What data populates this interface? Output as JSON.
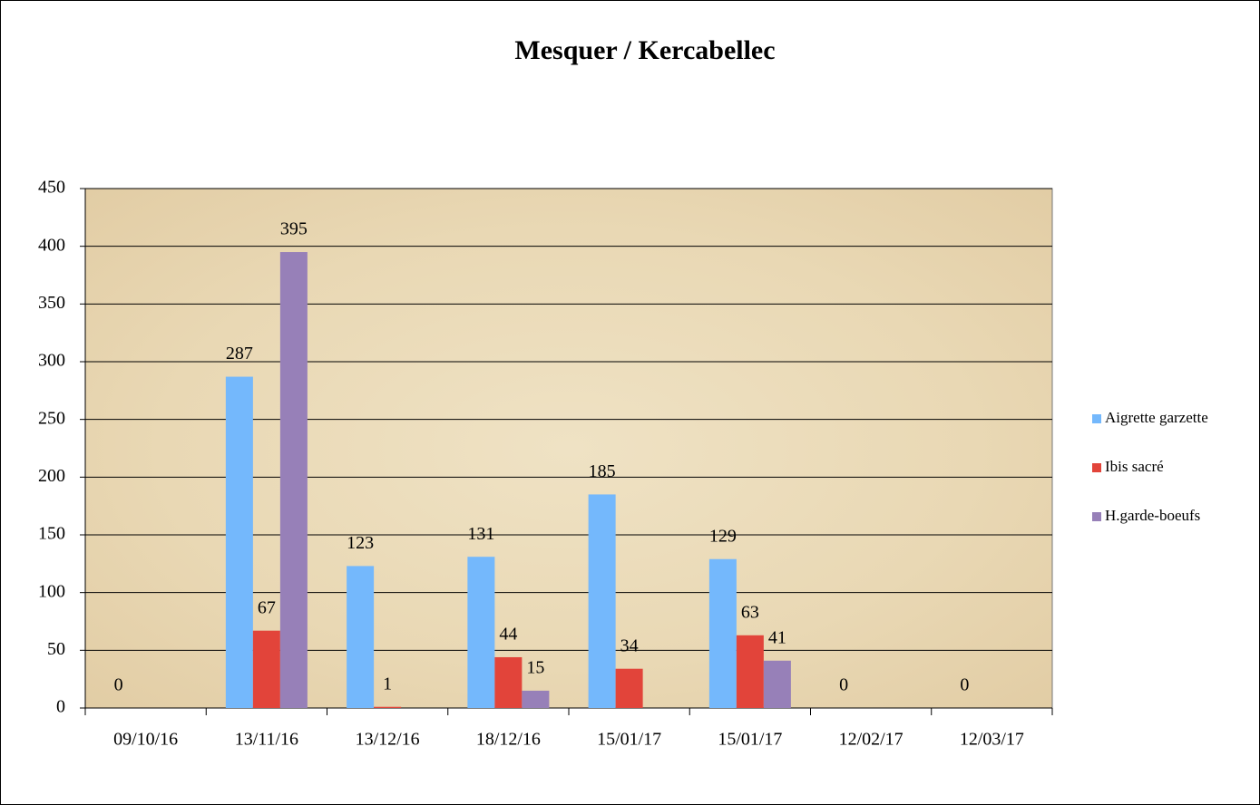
{
  "chart_data": {
    "type": "bar",
    "title": "Mesquer / Kercabellec",
    "categories": [
      "09/10/16",
      "13/11/16",
      "13/12/16",
      "18/12/16",
      "15/01/17",
      "15/01/17",
      "12/02/17",
      "12/03/17"
    ],
    "series": [
      {
        "name": "Aigrette garzette",
        "color": "#74b8fc",
        "values": [
          0,
          287,
          123,
          131,
          185,
          129,
          0,
          0
        ]
      },
      {
        "name": "Ibis sacré",
        "color": "#e2443a",
        "values": [
          null,
          67,
          1,
          44,
          34,
          63,
          null,
          null
        ]
      },
      {
        "name": "H.garde-boeufs",
        "color": "#9780b8",
        "values": [
          null,
          395,
          null,
          15,
          null,
          41,
          null,
          null
        ]
      }
    ],
    "ylim": [
      0,
      450
    ],
    "yticks": [
      0,
      50,
      100,
      150,
      200,
      250,
      300,
      350,
      400,
      450
    ],
    "grid": true,
    "legend": "right"
  }
}
